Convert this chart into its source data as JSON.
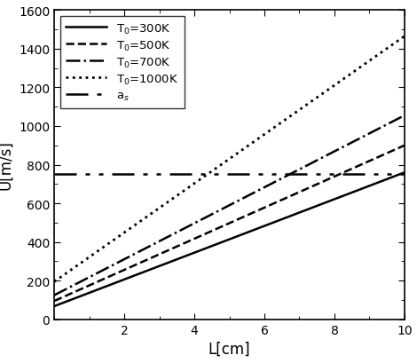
{
  "xlim": [
    0,
    10
  ],
  "ylim": [
    0,
    1600
  ],
  "xlabel": "L[cm]",
  "ylabel": "U[m/s]",
  "xticks": [
    2,
    4,
    6,
    8,
    10
  ],
  "yticks": [
    0,
    200,
    400,
    600,
    800,
    1000,
    1200,
    1400,
    1600
  ],
  "lines": [
    {
      "label": "T$_0$=300K",
      "intercept": 68,
      "slope": 69.2,
      "color": "black",
      "linestyle": "solid",
      "linewidth": 1.8
    },
    {
      "label": "T$_0$=500K",
      "intercept": 95,
      "slope": 80.5,
      "color": "black",
      "linestyle": "dashed",
      "linewidth": 1.8
    },
    {
      "label": "T$_0$=700K",
      "intercept": 125,
      "slope": 93.0,
      "color": "black",
      "linestyle": "dashdot",
      "linewidth": 1.8
    },
    {
      "label": "T$_0$=1000K",
      "intercept": 195,
      "slope": 127.0,
      "color": "black",
      "linestyle": "dotted",
      "linewidth": 2.0
    }
  ],
  "sound_speed": {
    "label": "a$_s$",
    "value": 752,
    "color": "black",
    "dash_pattern": [
      10,
      4,
      2,
      4,
      2,
      4
    ],
    "linewidth": 1.8
  },
  "background_color": "white",
  "legend_fontsize": 9.5,
  "tick_fontsize": 10,
  "label_fontsize": 12,
  "figsize": [
    4.7,
    4.1
  ],
  "dpi": 100
}
